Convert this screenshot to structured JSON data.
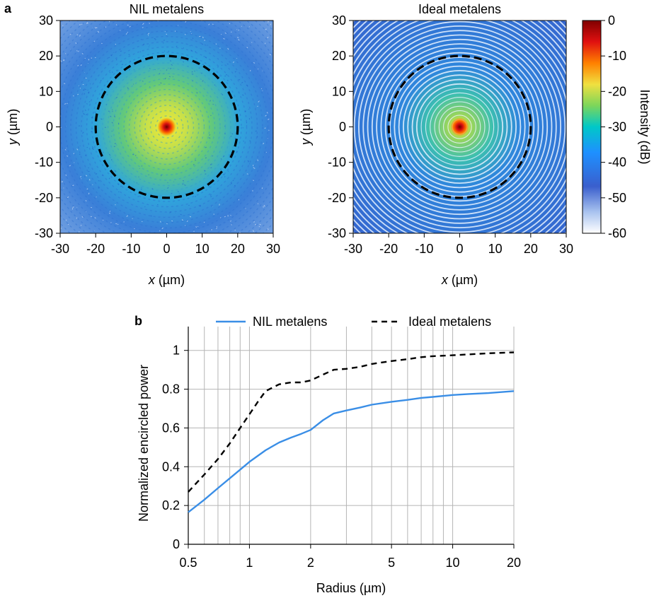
{
  "panel_labels": {
    "a": "a",
    "b": "b"
  },
  "chart_data": [
    {
      "type": "heatmap",
      "title": "NIL metalens",
      "xlabel_var": "x",
      "xlabel_unit": " (µm)",
      "ylabel_var": "y",
      "ylabel_unit": " (µm)",
      "xlim": [
        -30,
        30
      ],
      "ylim": [
        -30,
        30
      ],
      "xticks": [
        -30,
        -20,
        -10,
        0,
        10,
        20,
        30
      ],
      "yticks": [
        -30,
        -20,
        -10,
        0,
        10,
        20,
        30
      ],
      "tick_labels": [
        "-30",
        "-20",
        "-10",
        "0",
        "10",
        "20",
        "30"
      ],
      "dashed_circle_radius": 20,
      "focal_peak_db": 0,
      "background_db": -50
    },
    {
      "type": "heatmap",
      "title": "Ideal metalens",
      "xlabel_var": "x",
      "xlabel_unit": " (µm)",
      "ylabel_var": "y",
      "ylabel_unit": " (µm)",
      "xlim": [
        -30,
        30
      ],
      "ylim": [
        -30,
        30
      ],
      "xticks": [
        -30,
        -20,
        -10,
        0,
        10,
        20,
        30
      ],
      "yticks": [
        -30,
        -20,
        -10,
        0,
        10,
        20,
        30
      ],
      "tick_labels": [
        "-30",
        "-20",
        "-10",
        "0",
        "10",
        "20",
        "30"
      ],
      "dashed_circle_radius": 20,
      "ring_pattern": "concentric",
      "colorbar": {
        "label": "Intensity (dB)",
        "range": [
          -60,
          0
        ],
        "ticks": [
          0,
          -10,
          -20,
          -30,
          -40,
          -50,
          -60
        ],
        "tick_labels": [
          "0",
          "-10",
          "-20",
          "-30",
          "-40",
          "-50",
          "-60"
        ],
        "colormap": "jet",
        "colors": [
          "#ffffff",
          "#3a5fcd",
          "#1e90ff",
          "#00c8c8",
          "#7cd65a",
          "#f0e040",
          "#ff8000",
          "#e01010",
          "#800000"
        ]
      }
    },
    {
      "type": "line",
      "xscale": "log",
      "xlabel": "Radius (µm)",
      "ylabel": "Normalized encircled power",
      "xlim": [
        0.5,
        20
      ],
      "ylim": [
        0,
        1.05
      ],
      "xticks": [
        0.5,
        1,
        2,
        5,
        10,
        20
      ],
      "xtick_labels": [
        "0.5",
        "1",
        "2",
        "5",
        "10",
        "20"
      ],
      "yticks": [
        0,
        0.2,
        0.4,
        0.6,
        0.8,
        1
      ],
      "ytick_labels": [
        "0",
        "0.2",
        "0.4",
        "0.6",
        "0.8",
        "1"
      ],
      "grid": true,
      "legend_position": "top",
      "series": [
        {
          "name": "NIL metalens",
          "style": "solid",
          "color": "#3a8ee6",
          "x": [
            0.5,
            0.6,
            0.7,
            0.8,
            0.9,
            1.0,
            1.2,
            1.4,
            1.6,
            1.8,
            2.0,
            2.3,
            2.6,
            3.0,
            3.5,
            4.0,
            5.0,
            6.0,
            7.0,
            8.0,
            10,
            12,
            15,
            20
          ],
          "y": [
            0.165,
            0.23,
            0.29,
            0.34,
            0.385,
            0.425,
            0.485,
            0.525,
            0.55,
            0.57,
            0.59,
            0.64,
            0.675,
            0.69,
            0.705,
            0.72,
            0.735,
            0.745,
            0.755,
            0.76,
            0.77,
            0.775,
            0.78,
            0.79
          ]
        },
        {
          "name": "Ideal metalens",
          "style": "dashed",
          "color": "#000000",
          "x": [
            0.5,
            0.6,
            0.7,
            0.8,
            0.9,
            1.0,
            1.1,
            1.2,
            1.4,
            1.6,
            1.8,
            2.0,
            2.3,
            2.6,
            3.0,
            3.5,
            4.0,
            5.0,
            6.0,
            7.0,
            8.0,
            10,
            15,
            20
          ],
          "y": [
            0.27,
            0.36,
            0.44,
            0.52,
            0.6,
            0.67,
            0.735,
            0.79,
            0.825,
            0.835,
            0.835,
            0.845,
            0.875,
            0.9,
            0.905,
            0.915,
            0.93,
            0.945,
            0.955,
            0.965,
            0.97,
            0.975,
            0.985,
            0.99
          ]
        }
      ]
    }
  ]
}
